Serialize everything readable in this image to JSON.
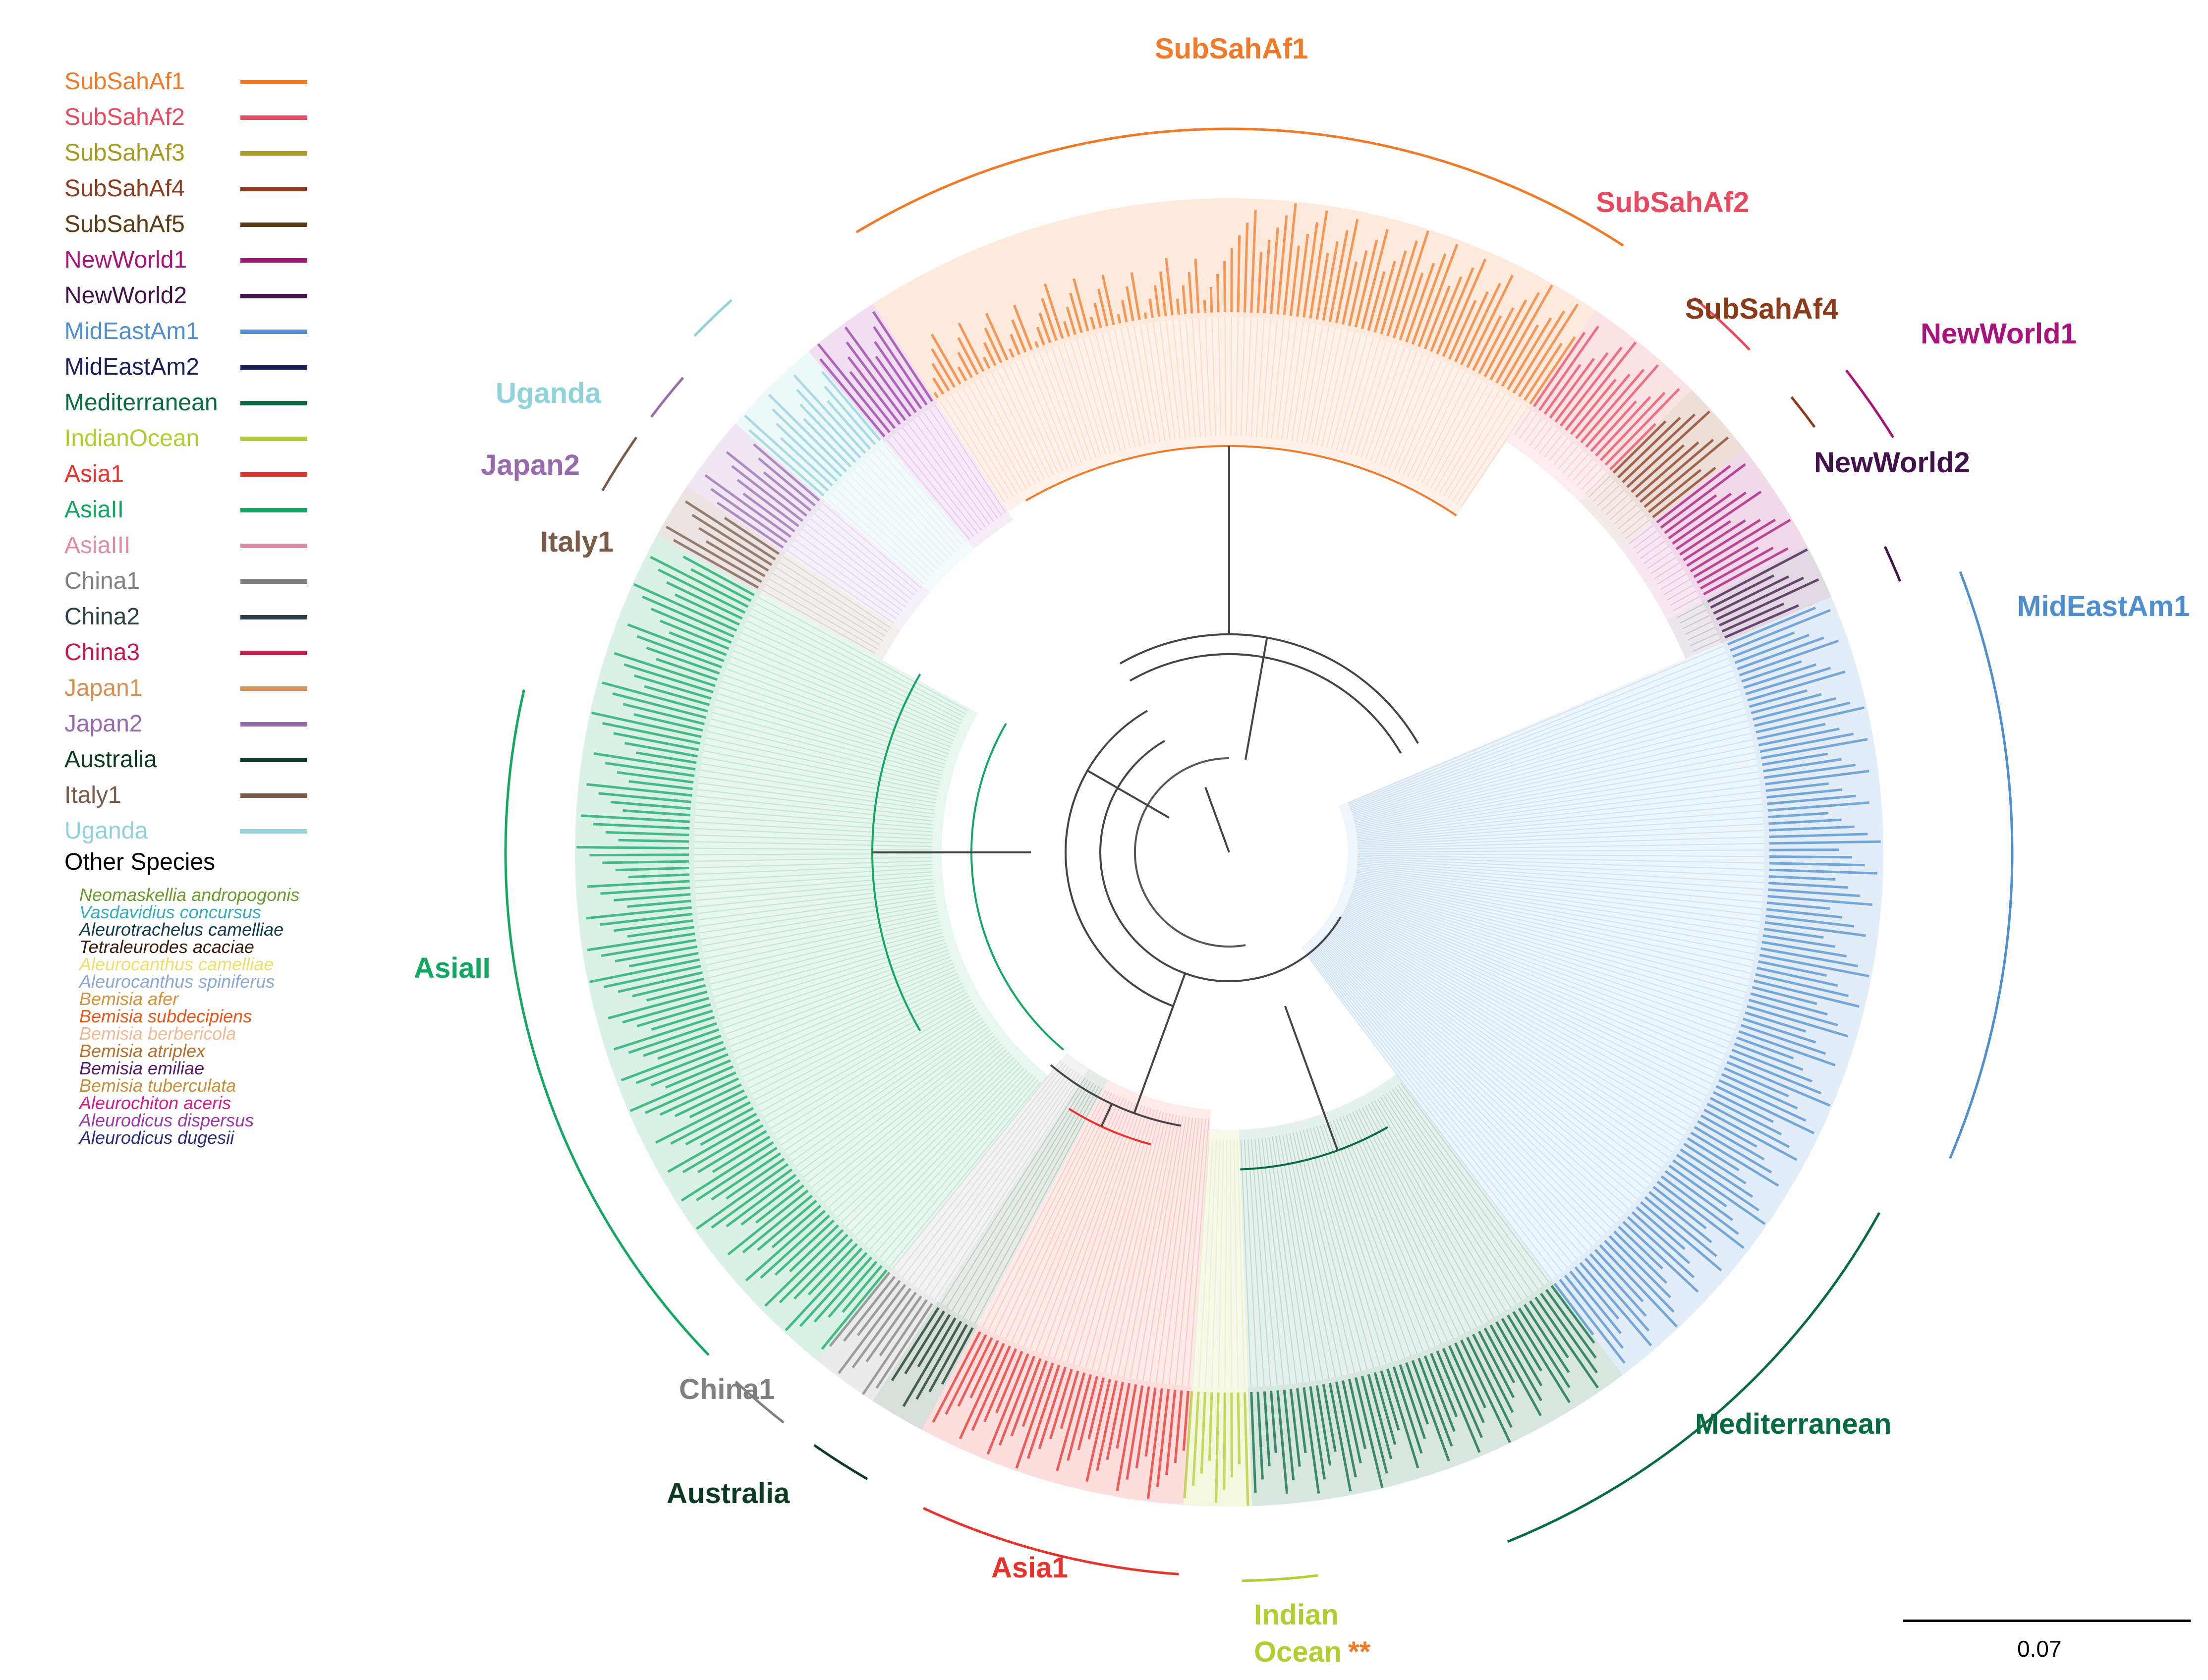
{
  "legend": {
    "items": [
      {
        "label": "SubSahAf1",
        "color": "#f07a28"
      },
      {
        "label": "SubSahAf2",
        "color": "#e8495f"
      },
      {
        "label": "SubSahAf3",
        "color": "#a89a1c"
      },
      {
        "label": "SubSahAf4",
        "color": "#8b3a1a"
      },
      {
        "label": "SubSahAf5",
        "color": "#5c3a12"
      },
      {
        "label": "NewWorld1",
        "color": "#a8127a"
      },
      {
        "label": "NewWorld2",
        "color": "#42124a"
      },
      {
        "label": "MidEastAm1",
        "color": "#4f8fcf"
      },
      {
        "label": "MidEastAm2",
        "color": "#1b1f5e"
      },
      {
        "label": "Mediterranean",
        "color": "#066b40"
      },
      {
        "label": "IndianOcean",
        "color": "#b5cc30"
      },
      {
        "label": "Asia1",
        "color": "#e8322b"
      },
      {
        "label": "AsiaII",
        "color": "#12a862"
      },
      {
        "label": "AsiaIII",
        "color": "#e08aa6"
      },
      {
        "label": "China1",
        "color": "#808080"
      },
      {
        "label": "China2",
        "color": "#2a3f48"
      },
      {
        "label": "China3",
        "color": "#c41a4c"
      },
      {
        "label": "Japan1",
        "color": "#d89050"
      },
      {
        "label": "Japan2",
        "color": "#9a6ab0"
      },
      {
        "label": "Australia",
        "color": "#0c3a22"
      },
      {
        "label": "Italy1",
        "color": "#7a5a48"
      },
      {
        "label": "Uganda",
        "color": "#90d2dc"
      }
    ],
    "other_title": "Other Species",
    "species": [
      {
        "label": "Neomaskellia andropogonis",
        "color": "#6a9a2a"
      },
      {
        "label": "Vasdavidius concursus",
        "color": "#3aaeb8"
      },
      {
        "label": "Aleurotrachelus camelliae",
        "color": "#103a4a"
      },
      {
        "label": "Tetraleurodes acaciae",
        "color": "#3a1a0a"
      },
      {
        "label": "Aleurocanthus camelliae",
        "color": "#f0de6a"
      },
      {
        "label": "Aleurocanthus spiniferus",
        "color": "#8aa6d4"
      },
      {
        "label": "Bemisia afer",
        "color": "#d8903a"
      },
      {
        "label": "Bemisia subdecipiens",
        "color": "#e8581a"
      },
      {
        "label": "Bemisia berbericola",
        "color": "#f4b890"
      },
      {
        "label": "Bemisia atriplex",
        "color": "#b8702a"
      },
      {
        "label": "Bemisia emiliae",
        "color": "#5a1a6a"
      },
      {
        "label": "Bemisia tuberculata",
        "color": "#c0903a"
      },
      {
        "label": "Aleurochiton aceris",
        "color": "#d81a8a"
      },
      {
        "label": "Aleurodicus dispersus",
        "color": "#9a3aa6"
      },
      {
        "label": "Aleurodicus dugesii",
        "color": "#2a2a7a"
      }
    ]
  },
  "clades": [
    {
      "label": "SubSahAf1",
      "color": "#f07a28"
    },
    {
      "label": "SubSahAf2",
      "color": "#e8495f"
    },
    {
      "label": "SubSahAf4",
      "color": "#8b3a1a"
    },
    {
      "label": "NewWorld1",
      "color": "#a8127a"
    },
    {
      "label": "NewWorld2",
      "color": "#42124a"
    },
    {
      "label": "MidEastAm1",
      "color": "#4f8fcf"
    },
    {
      "label": "Mediterranean",
      "color": "#066b40"
    },
    {
      "label": "Indian",
      "color": "#b5cc30"
    },
    {
      "label": "Ocean",
      "color": "#b5cc30"
    },
    {
      "label": "**",
      "color": "#f07a28"
    },
    {
      "label": "Asia1",
      "color": "#e8322b"
    },
    {
      "label": "Australia",
      "color": "#0c3a22"
    },
    {
      "label": "China1",
      "color": "#808080"
    },
    {
      "label": "AsiaII",
      "color": "#12a862"
    },
    {
      "label": "Italy1",
      "color": "#7a5a48"
    },
    {
      "label": "Japan2",
      "color": "#9a6ab0"
    },
    {
      "label": "Uganda",
      "color": "#90d2dc"
    }
  ],
  "scale_bar": {
    "label": "0.07"
  }
}
